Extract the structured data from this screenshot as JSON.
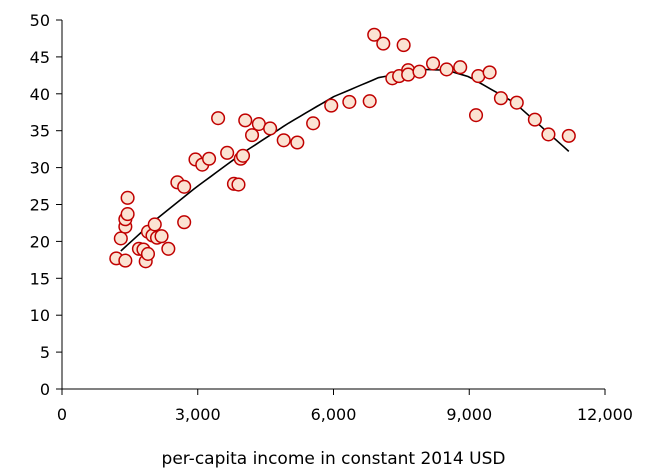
{
  "chart_data": {
    "type": "scatter",
    "title": "",
    "xlabel": "per-capita income in constant 2014 USD",
    "ylabel": "",
    "xlim": [
      0,
      12000
    ],
    "ylim": [
      0,
      50
    ],
    "x_ticks": [
      0,
      3000,
      6000,
      9000,
      12000
    ],
    "x_tick_labels": [
      "0",
      "3,000",
      "6,000",
      "9,000",
      "12,000"
    ],
    "y_ticks": [
      0,
      5,
      10,
      15,
      20,
      25,
      30,
      35,
      40,
      45,
      50
    ],
    "y_tick_labels": [
      "0",
      "5",
      "10",
      "15",
      "20",
      "25",
      "30",
      "35",
      "40",
      "45",
      "50"
    ],
    "grid": false,
    "legend": "none",
    "colors": {
      "marker_fill": "#fbe3d3",
      "marker_edge": "#c00000",
      "trend": "#000000",
      "axis": "#000000"
    },
    "trendline": {
      "type": "polynomial-2",
      "points": [
        {
          "x": 1300,
          "y": 18.7
        },
        {
          "x": 2000,
          "y": 22.6
        },
        {
          "x": 3000,
          "y": 27.5
        },
        {
          "x": 4000,
          "y": 32.0
        },
        {
          "x": 5000,
          "y": 36.0
        },
        {
          "x": 6000,
          "y": 39.6
        },
        {
          "x": 7000,
          "y": 42.2
        },
        {
          "x": 8000,
          "y": 43.3
        },
        {
          "x": 8500,
          "y": 43.2
        },
        {
          "x": 9000,
          "y": 42.3
        },
        {
          "x": 10000,
          "y": 38.8
        },
        {
          "x": 11200,
          "y": 32.2
        }
      ]
    },
    "points": [
      {
        "x": 1200,
        "y": 17.7
      },
      {
        "x": 1400,
        "y": 17.4
      },
      {
        "x": 1300,
        "y": 20.4
      },
      {
        "x": 1400,
        "y": 22.0
      },
      {
        "x": 1400,
        "y": 23.0
      },
      {
        "x": 1450,
        "y": 23.7
      },
      {
        "x": 1450,
        "y": 25.9
      },
      {
        "x": 1700,
        "y": 19.0
      },
      {
        "x": 1800,
        "y": 18.9
      },
      {
        "x": 1850,
        "y": 17.3
      },
      {
        "x": 1900,
        "y": 18.3
      },
      {
        "x": 1900,
        "y": 21.3
      },
      {
        "x": 2000,
        "y": 20.8
      },
      {
        "x": 2050,
        "y": 22.3
      },
      {
        "x": 2100,
        "y": 20.5
      },
      {
        "x": 2200,
        "y": 20.7
      },
      {
        "x": 2350,
        "y": 19.0
      },
      {
        "x": 2550,
        "y": 28.0
      },
      {
        "x": 2700,
        "y": 22.6
      },
      {
        "x": 2700,
        "y": 27.4
      },
      {
        "x": 2950,
        "y": 31.1
      },
      {
        "x": 3100,
        "y": 30.4
      },
      {
        "x": 3250,
        "y": 31.2
      },
      {
        "x": 3450,
        "y": 36.7
      },
      {
        "x": 3650,
        "y": 32.0
      },
      {
        "x": 3800,
        "y": 27.8
      },
      {
        "x": 3900,
        "y": 27.7
      },
      {
        "x": 3950,
        "y": 31.2
      },
      {
        "x": 4000,
        "y": 31.6
      },
      {
        "x": 4050,
        "y": 36.4
      },
      {
        "x": 4200,
        "y": 34.4
      },
      {
        "x": 4350,
        "y": 35.9
      },
      {
        "x": 4600,
        "y": 35.3
      },
      {
        "x": 4900,
        "y": 33.7
      },
      {
        "x": 5200,
        "y": 33.4
      },
      {
        "x": 5550,
        "y": 36.0
      },
      {
        "x": 5950,
        "y": 38.4
      },
      {
        "x": 6350,
        "y": 38.9
      },
      {
        "x": 6800,
        "y": 39.0
      },
      {
        "x": 6900,
        "y": 48.0
      },
      {
        "x": 7100,
        "y": 46.8
      },
      {
        "x": 7300,
        "y": 42.1
      },
      {
        "x": 7450,
        "y": 42.4
      },
      {
        "x": 7550,
        "y": 46.6
      },
      {
        "x": 7650,
        "y": 43.2
      },
      {
        "x": 7650,
        "y": 42.6
      },
      {
        "x": 7900,
        "y": 43.0
      },
      {
        "x": 8200,
        "y": 44.1
      },
      {
        "x": 8500,
        "y": 43.3
      },
      {
        "x": 8800,
        "y": 43.6
      },
      {
        "x": 9150,
        "y": 37.1
      },
      {
        "x": 9200,
        "y": 42.4
      },
      {
        "x": 9450,
        "y": 42.9
      },
      {
        "x": 9700,
        "y": 39.4
      },
      {
        "x": 10050,
        "y": 38.8
      },
      {
        "x": 10450,
        "y": 36.5
      },
      {
        "x": 10750,
        "y": 34.5
      },
      {
        "x": 11200,
        "y": 34.3
      }
    ]
  }
}
